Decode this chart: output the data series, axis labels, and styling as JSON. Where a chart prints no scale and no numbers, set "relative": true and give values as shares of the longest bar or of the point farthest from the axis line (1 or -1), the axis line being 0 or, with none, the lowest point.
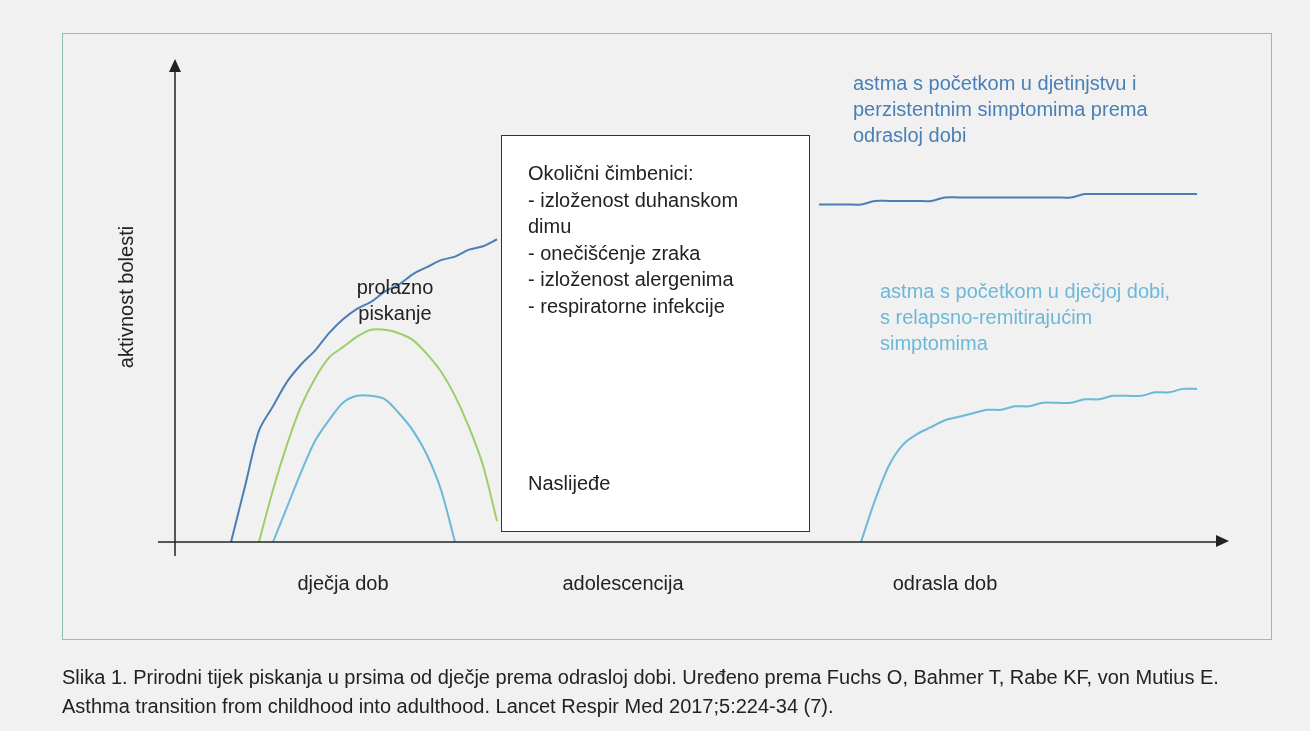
{
  "chart_data": {
    "type": "line",
    "relative": true,
    "ylabel": "aktivnost bolesti",
    "categories": [
      null,
      null,
      null,
      null,
      null,
      null,
      null,
      null,
      null,
      null,
      null,
      null,
      "dječja dob",
      null,
      null,
      null,
      null,
      null,
      null,
      null,
      null,
      null,
      null,
      null,
      null,
      null,
      null,
      null,
      null,
      null,
      null,
      null,
      "adolescencija",
      null,
      null,
      null,
      null,
      null,
      null,
      null,
      null,
      null,
      null,
      null,
      null,
      null,
      null,
      null,
      null,
      null,
      null,
      null,
      null,
      null,
      null,
      "odrasla dob",
      null,
      null,
      null,
      null,
      null,
      null,
      null,
      null,
      null,
      null,
      null,
      null,
      null,
      null,
      null,
      null,
      null,
      null,
      null
    ],
    "series": [
      {
        "name": "astma s početkom u djetinjstvu i perzistentnim simptomima prema odrasloj dobi",
        "color": "#4a7fb5",
        "values": [
          null,
          null,
          null,
          null,
          0,
          0.16,
          0.32,
          0.39,
          0.46,
          0.51,
          0.55,
          0.6,
          0.64,
          0.67,
          0.69,
          0.72,
          0.74,
          0.77,
          0.79,
          0.81,
          0.82,
          0.84,
          0.85,
          0.87,
          null,
          null,
          null,
          null,
          null,
          null,
          null,
          null,
          null,
          null,
          null,
          null,
          null,
          null,
          null,
          null,
          null,
          null,
          null,
          null,
          null,
          null,
          0.97,
          0.97,
          0.97,
          0.97,
          0.98,
          0.98,
          0.98,
          0.98,
          0.98,
          0.99,
          0.99,
          0.99,
          0.99,
          0.99,
          0.99,
          0.99,
          0.99,
          0.99,
          0.99,
          1,
          1,
          1,
          1,
          1,
          1,
          1,
          1,
          1,
          null
        ]
      },
      {
        "name": "prolazno piskanje",
        "color": "#9ccf6a",
        "values": [
          null,
          null,
          null,
          null,
          null,
          null,
          0,
          0.15,
          0.28,
          0.39,
          0.47,
          0.53,
          0.56,
          0.59,
          0.61,
          0.61,
          0.6,
          0.58,
          0.54,
          0.49,
          0.42,
          0.33,
          0.22,
          0.06,
          null,
          null,
          null,
          null,
          null,
          null,
          null,
          null,
          null,
          null,
          null,
          null,
          null,
          null,
          null,
          null,
          null,
          null,
          null,
          null,
          null,
          null,
          null,
          null,
          null,
          null,
          null,
          null,
          null,
          null,
          null,
          null,
          null,
          null,
          null,
          null,
          null,
          null,
          null,
          null,
          null,
          null,
          null,
          null,
          null,
          null,
          null,
          null,
          null,
          null,
          null
        ]
      },
      {
        "name": "astma s početkom u dječjoj dobi, s relapsno-remitirajućim simptomima",
        "color": "#6cb8d8",
        "values": [
          null,
          null,
          null,
          null,
          null,
          null,
          null,
          0,
          0.1,
          0.2,
          0.29,
          0.35,
          0.4,
          0.42,
          0.42,
          0.41,
          0.37,
          0.32,
          0.25,
          0.15,
          0,
          null,
          null,
          null,
          null,
          null,
          null,
          null,
          null,
          null,
          null,
          null,
          null,
          null,
          null,
          null,
          null,
          null,
          null,
          null,
          null,
          null,
          null,
          null,
          null,
          null,
          null,
          null,
          null,
          0,
          0.12,
          0.22,
          0.28,
          0.31,
          0.33,
          0.35,
          0.36,
          0.37,
          0.38,
          0.38,
          0.39,
          0.39,
          0.4,
          0.4,
          0.4,
          0.41,
          0.41,
          0.42,
          0.42,
          0.42,
          0.43,
          0.43,
          0.44,
          0.44,
          null
        ]
      }
    ],
    "annotations": [
      "Okolični čimbenici:\n- izloženost duhanskom dimu\n- onečišćenje zraka\n- izloženost alergenima\n- respiratorne infekcije",
      "Naslijeđe",
      "Slika 1. Prirodni tijek piskanja u prsima od dječje prema odrasloj dobi. Uređeno prema Fuchs O, Bahmer T, Rabe KF, von Mutius E. Asthma transition from childhood into adulthood. Lancet Respir Med 2017;5:224-34 (7)."
    ],
    "legend": false,
    "grid": false,
    "marker": "none",
    "line_style": "solid"
  }
}
